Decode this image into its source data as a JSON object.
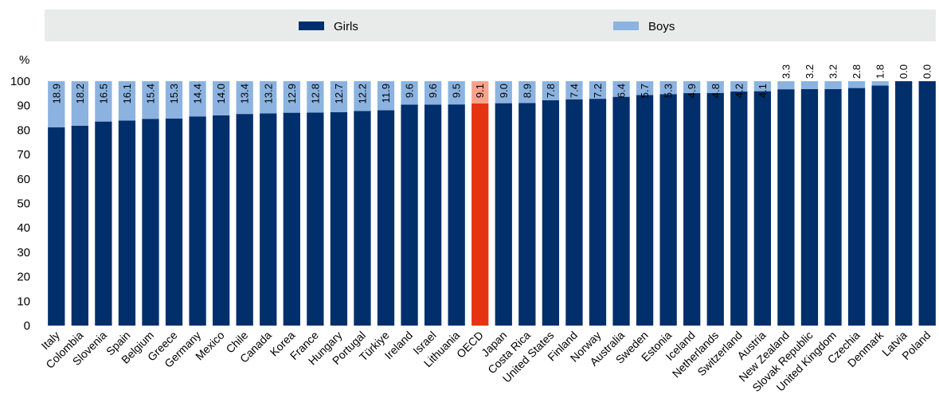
{
  "chart_data": {
    "type": "bar",
    "stacked": true,
    "ylabel": "%",
    "ylim": [
      0,
      100
    ],
    "yticks": [
      0,
      10,
      20,
      30,
      40,
      50,
      60,
      70,
      80,
      90,
      100
    ],
    "grid": false,
    "legend_position": "top",
    "categories": [
      "Italy",
      "Colombia",
      "Slovenia",
      "Spain",
      "Belgium",
      "Greece",
      "Germany",
      "Mexico",
      "Chile",
      "Canada",
      "Korea",
      "France",
      "Hungary",
      "Portugal",
      "Türkiye",
      "Ireland",
      "Israel",
      "Lithuania",
      "OECD",
      "Japan",
      "Costa Rica",
      "United States",
      "Finland",
      "Norway",
      "Australia",
      "Sweden",
      "Estonia",
      "Iceland",
      "Netherlands",
      "Switzerland",
      "Austria",
      "New Zealand",
      "Slovak Republic",
      "United Kingdom",
      "Czechia",
      "Denmark",
      "Latvia",
      "Poland"
    ],
    "series": [
      {
        "name": "Girls",
        "color": "#002f6c",
        "highlight_color": "#e63312",
        "values": [
          81.1,
          81.8,
          83.5,
          83.9,
          84.6,
          84.7,
          85.6,
          86.0,
          86.6,
          86.8,
          87.1,
          87.2,
          87.3,
          87.8,
          88.1,
          90.4,
          90.4,
          90.5,
          90.9,
          91.0,
          91.1,
          92.2,
          92.6,
          92.8,
          93.6,
          94.3,
          94.7,
          95.1,
          95.2,
          95.8,
          95.9,
          96.7,
          96.8,
          96.8,
          97.2,
          98.2,
          100.0,
          100.0
        ]
      },
      {
        "name": "Boys",
        "color": "#8cb3e0",
        "highlight_color": "#f7a28b",
        "values": [
          18.9,
          18.2,
          16.5,
          16.1,
          15.4,
          15.3,
          14.4,
          14.0,
          13.4,
          13.2,
          12.9,
          12.8,
          12.7,
          12.2,
          11.9,
          9.6,
          9.6,
          9.5,
          9.1,
          9.0,
          8.9,
          7.8,
          7.4,
          7.2,
          6.4,
          5.7,
          5.3,
          4.9,
          4.8,
          4.2,
          4.1,
          3.3,
          3.2,
          3.2,
          2.8,
          1.8,
          0.0,
          0.0
        ]
      }
    ],
    "data_labels": [
      "18.9",
      "18.2",
      "16.5",
      "16.1",
      "15.4",
      "15.3",
      "14.4",
      "14.0",
      "13.4",
      "13.2",
      "12.9",
      "12.8",
      "12.7",
      "12.2",
      "11.9",
      "9.6",
      "9.6",
      "9.5",
      "9.1",
      "9.0",
      "8.9",
      "7.8",
      "7.4",
      "7.2",
      "6.4",
      "5.7",
      "5.3",
      "4.9",
      "4.8",
      "4.2",
      "4.1",
      "3.3",
      "3.2",
      "3.2",
      "2.8",
      "1.8",
      "0.0",
      "0.0"
    ],
    "highlight_category": "OECD"
  }
}
